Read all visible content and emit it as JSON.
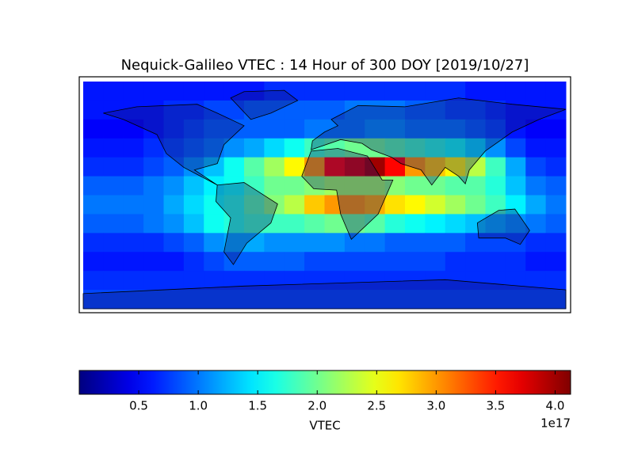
{
  "chart_data": {
    "type": "heatmap",
    "title": "Nequick-Galileo VTEC : 14 Hour of 300 DOY [2019/10/27]",
    "colormap": "jet",
    "values": [
      [
        0.6,
        0.6,
        0.6,
        0.6,
        0.6,
        0.6,
        0.6,
        0.6,
        0.6,
        0.7,
        0.7,
        0.7,
        0.7,
        0.7,
        0.7,
        0.7,
        0.7,
        0.7,
        0.7,
        0.6,
        0.6,
        0.6,
        0.6,
        0.6
      ],
      [
        0.6,
        0.6,
        0.6,
        0.6,
        0.7,
        0.7,
        0.8,
        0.8,
        0.9,
        0.9,
        0.9,
        0.9,
        0.9,
        1.0,
        1.0,
        1.0,
        0.9,
        0.9,
        0.8,
        0.8,
        0.7,
        0.6,
        0.6,
        0.6
      ],
      [
        0.5,
        0.5,
        0.5,
        0.6,
        0.7,
        0.8,
        0.9,
        0.9,
        0.9,
        0.9,
        0.9,
        1.0,
        1.0,
        1.0,
        1.1,
        1.1,
        1.0,
        1.0,
        1.0,
        0.9,
        0.8,
        0.6,
        0.5,
        0.5
      ],
      [
        0.6,
        0.6,
        0.6,
        0.7,
        0.8,
        0.9,
        1.0,
        1.1,
        1.2,
        1.4,
        1.6,
        1.8,
        1.9,
        2.0,
        2.0,
        1.9,
        1.8,
        1.7,
        1.6,
        1.4,
        1.1,
        0.8,
        0.6,
        0.6
      ],
      [
        0.7,
        0.7,
        0.7,
        0.8,
        0.9,
        1.1,
        1.3,
        1.6,
        1.9,
        2.2,
        2.6,
        3.0,
        3.6,
        3.8,
        4.0,
        3.6,
        3.0,
        2.8,
        2.6,
        2.3,
        1.8,
        1.2,
        0.8,
        0.7
      ],
      [
        0.9,
        0.9,
        0.9,
        1.0,
        1.1,
        1.3,
        1.5,
        1.6,
        1.8,
        2.0,
        2.0,
        2.1,
        2.2,
        2.2,
        2.2,
        2.1,
        2.0,
        2.0,
        1.9,
        1.9,
        1.7,
        1.3,
        1.0,
        0.9
      ],
      [
        1.0,
        1.0,
        1.0,
        1.0,
        1.2,
        1.4,
        1.6,
        1.7,
        1.9,
        2.1,
        2.3,
        2.8,
        3.0,
        3.0,
        2.9,
        2.7,
        2.6,
        2.4,
        2.2,
        2.0,
        1.8,
        1.5,
        1.2,
        1.0
      ],
      [
        0.9,
        0.9,
        0.9,
        1.0,
        1.1,
        1.3,
        1.6,
        1.7,
        1.8,
        1.8,
        1.8,
        1.9,
        2.0,
        2.0,
        1.9,
        1.7,
        1.6,
        1.5,
        1.4,
        1.3,
        1.2,
        1.1,
        1.0,
        0.9
      ],
      [
        0.7,
        0.7,
        0.7,
        0.7,
        0.8,
        0.9,
        1.1,
        1.2,
        1.2,
        1.1,
        1.1,
        1.1,
        1.1,
        1.0,
        1.0,
        0.9,
        0.9,
        0.9,
        0.9,
        0.8,
        0.8,
        0.8,
        0.7,
        0.7
      ],
      [
        0.6,
        0.6,
        0.6,
        0.6,
        0.6,
        0.7,
        0.8,
        0.9,
        0.9,
        0.9,
        0.9,
        0.8,
        0.8,
        0.8,
        0.8,
        0.8,
        0.8,
        0.8,
        0.7,
        0.7,
        0.7,
        0.7,
        0.6,
        0.6
      ],
      [
        0.7,
        0.7,
        0.7,
        0.7,
        0.7,
        0.7,
        0.7,
        0.7,
        0.7,
        0.7,
        0.7,
        0.7,
        0.7,
        0.7,
        0.7,
        0.7,
        0.7,
        0.7,
        0.7,
        0.7,
        0.7,
        0.7,
        0.7,
        0.7
      ],
      [
        0.8,
        0.8,
        0.8,
        0.8,
        0.8,
        0.8,
        0.8,
        0.8,
        0.8,
        0.8,
        0.8,
        0.8,
        0.8,
        0.8,
        0.8,
        0.8,
        0.8,
        0.8,
        0.8,
        0.8,
        0.8,
        0.8,
        0.8,
        0.8
      ]
    ],
    "colorbar": {
      "label": "VTEC",
      "offset_label": "1e17",
      "lim": [
        0,
        4.13
      ],
      "ticks": [
        0.5,
        {
          "value": 1,
          "label": "1.0"
        },
        1.5,
        {
          "value": 2,
          "label": "2.0"
        },
        2.5,
        {
          "value": 3,
          "label": "3.0"
        },
        3.5,
        {
          "value": 4,
          "label": "4.0"
        }
      ]
    }
  }
}
